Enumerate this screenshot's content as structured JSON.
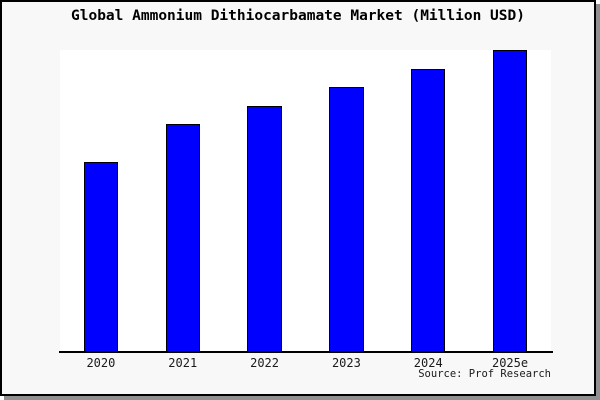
{
  "chart": {
    "title": "Global Ammonium Dithiocarbamate Market (Million USD)",
    "source_note": "Source: Prof Research",
    "colors": {
      "canvas_background": "#f8f8f8",
      "plot_background": "#ffffff",
      "bar_fill": "#0000ff",
      "bar_edge": "#000000",
      "axis_line": "#000000",
      "frame_border": "#000000",
      "frame_shadow": "#909090",
      "text": "#000000"
    }
  },
  "chart_data": {
    "type": "bar",
    "title": "Global Ammonium Dithiocarbamate Market (Million USD)",
    "categories": [
      "2020",
      "2021",
      "2022",
      "2023",
      "2024",
      "2025e"
    ],
    "values_fraction_of_plot_height": [
      0.628,
      0.753,
      0.814,
      0.877,
      0.937,
      1.0
    ],
    "value_axis_labels_shown": false,
    "value_labels_shown": false,
    "xlabel": "",
    "ylabel": "",
    "legend": "none",
    "grid": false,
    "bar_color": "#0000ff",
    "bar_edge_color": "#000000",
    "source_note": "Source: Prof Research"
  }
}
